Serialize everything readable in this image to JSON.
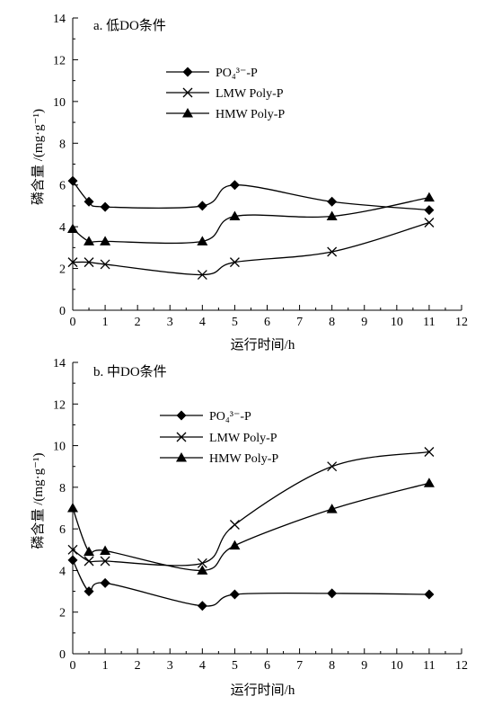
{
  "chart_data": [
    {
      "type": "line",
      "title": "a. 低DO条件",
      "xlabel": "运行时间/h",
      "ylabel": "磷含量 /(mg·g⁻¹)",
      "xlim": [
        0,
        12
      ],
      "ylim": [
        0,
        14
      ],
      "xticks": [
        0,
        1,
        2,
        3,
        4,
        5,
        6,
        7,
        8,
        9,
        10,
        11,
        12
      ],
      "yticks": [
        0,
        2,
        4,
        6,
        8,
        10,
        12,
        14
      ],
      "grid": false,
      "legend_position": "upper-center",
      "series": [
        {
          "name": "PO₄³⁻-P",
          "marker": "diamond",
          "x": [
            0,
            0.5,
            1,
            4,
            5,
            8,
            11
          ],
          "y": [
            6.2,
            5.2,
            4.95,
            5.0,
            6.0,
            5.2,
            4.8
          ]
        },
        {
          "name": "LMW Poly-P",
          "marker": "x",
          "x": [
            0,
            0.5,
            1,
            4,
            5,
            8,
            11
          ],
          "y": [
            2.3,
            2.3,
            2.2,
            1.7,
            2.3,
            2.8,
            4.2
          ]
        },
        {
          "name": "HMW Poly-P",
          "marker": "triangle",
          "x": [
            0,
            0.5,
            1,
            4,
            5,
            8,
            11
          ],
          "y": [
            3.9,
            3.3,
            3.3,
            3.3,
            4.5,
            4.5,
            5.4
          ]
        }
      ]
    },
    {
      "type": "line",
      "title": "b. 中DO条件",
      "xlabel": "运行时间/h",
      "ylabel": "磷含量 /(mg·g⁻¹)",
      "xlim": [
        0,
        12
      ],
      "ylim": [
        0,
        14
      ],
      "xticks": [
        0,
        1,
        2,
        3,
        4,
        5,
        6,
        7,
        8,
        9,
        10,
        11,
        12
      ],
      "yticks": [
        0,
        2,
        4,
        6,
        8,
        10,
        12,
        14
      ],
      "grid": false,
      "legend_position": "upper-center",
      "series": [
        {
          "name": "PO₄³⁻-P",
          "marker": "diamond",
          "x": [
            0,
            0.5,
            1,
            4,
            5,
            8,
            11
          ],
          "y": [
            4.5,
            3.0,
            3.4,
            2.3,
            2.85,
            2.9,
            2.85
          ]
        },
        {
          "name": "LMW Poly-P",
          "marker": "x",
          "x": [
            0,
            0.5,
            1,
            4,
            5,
            8,
            11
          ],
          "y": [
            5.0,
            4.45,
            4.45,
            4.35,
            6.2,
            9.0,
            9.7
          ]
        },
        {
          "name": "HMW Poly-P",
          "marker": "triangle",
          "x": [
            0,
            0.5,
            1,
            4,
            5,
            8,
            11
          ],
          "y": [
            7.0,
            4.9,
            4.95,
            4.0,
            5.2,
            6.95,
            8.2
          ]
        }
      ]
    }
  ]
}
